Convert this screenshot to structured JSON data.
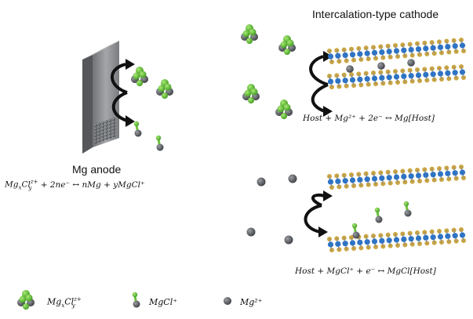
{
  "diagram": {
    "anode_label": "Mg anode",
    "cathode_title": "Intercalation-type cathode",
    "eq_anode": {
      "mg": "Mg",
      "x": "x",
      "cl": "Cl",
      "y": "y",
      "zplus": "z+",
      "rest": " + 2ne⁻ ↔ nMg + yMgCl⁺"
    },
    "eq_cathode_1": "Host + Mg²⁺ + 2e⁻ ↔ Mg[Host]",
    "eq_cathode_2": "Host + MgCl⁺ + e⁻ ↔ MgCl[Host]",
    "legend": {
      "complex": {
        "mg": "Mg",
        "x": "x",
        "cl": "Cl",
        "y": "y",
        "zplus": "z+"
      },
      "mgcl": "MgCl⁺",
      "mg2": "Mg²⁺"
    },
    "colors": {
      "mg_ion": "#5c5f63",
      "chlorine": "#6cc43a",
      "host_blue": "#2f74c4",
      "host_gold": "#c9a440",
      "anode_face": "#8d8e91"
    },
    "icons": [
      "curved-arrow-icon",
      "mg-ion-icon",
      "mgcl-ion-icon",
      "mgxcly-complex-icon",
      "host-layer-icon"
    ]
  }
}
